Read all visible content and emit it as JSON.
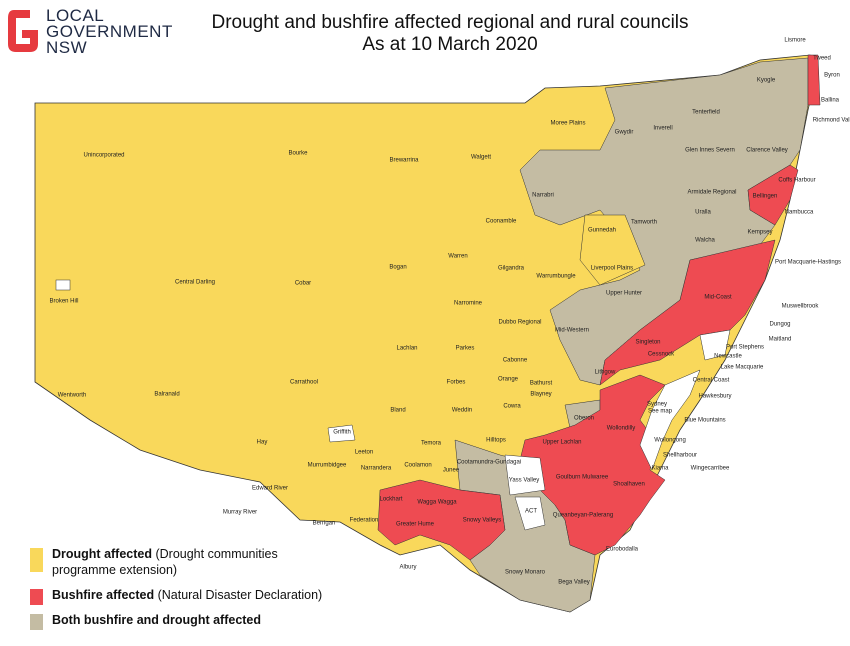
{
  "header": {
    "logo": [
      "LOCAL",
      "GOVERNMENT",
      "NSW"
    ],
    "title": [
      "Drought and bushfire affected regional and rural councils",
      "As at 10 March 2020"
    ]
  },
  "legend": {
    "items": [
      {
        "color": "#f9d85b",
        "bold": "Drought affected",
        "text": " (Drought communities programme extension)"
      },
      {
        "color": "#ee4b52",
        "bold": "Bushfire affected",
        "text": " (Natural Disaster Declaration)"
      },
      {
        "color": "#c4bca3",
        "bold": "Both bushfire and drought affected",
        "text": ""
      }
    ]
  },
  "councils": [
    "Lismore",
    "Tweed",
    "Byron",
    "Kyogle",
    "Ballina",
    "Richmond Valley",
    "Tenterfield",
    "Moree Plains",
    "Gwydir",
    "Inverell",
    "Glen Innes Severn",
    "Clarence Valley",
    "Unincorporated",
    "Bourke",
    "Brewarrina",
    "Walgett",
    "Coffs Harbour",
    "Narrabri",
    "Armidale Regional",
    "Uralla",
    "Bellingen",
    "Nambucca",
    "Coonamble",
    "Tamworth",
    "Gunnedah",
    "Walcha",
    "Kempsey",
    "Warren",
    "Gilgandra",
    "Bogan",
    "Liverpool Plains",
    "Warrumbungle",
    "Central Darling",
    "Cobar",
    "Port Macquarie-Hastings",
    "Upper Hunter",
    "Broken Hill",
    "Narromine",
    "Mid-Coast",
    "Muswellbrook",
    "Dubbo Regional",
    "Mid-Western",
    "Dungog",
    "Maitland",
    "Port Stephens",
    "Singleton",
    "Lachlan",
    "Parkes",
    "Cabonne",
    "Cessnock",
    "Newcastle",
    "Lake Macquarie",
    "Central Coast",
    "Orange",
    "Forbes",
    "Blayney",
    "Carrathool",
    "Lithgow",
    "Bathurst",
    "Wentworth",
    "Hawkesbury",
    "Sydney",
    "See map",
    "Blue Mountains",
    "Weddin",
    "Cowra",
    "Oberon",
    "Balranald",
    "Bland",
    "Hilltops",
    "Wollondilly",
    "Griffith",
    "Hay",
    "Leeton",
    "Temora",
    "Upper Lachlan",
    "Wollongong",
    "Shellharbour",
    "Murrumbidgee",
    "Narrandera",
    "Cootamundra-Gundagai",
    "Coolamon",
    "Junee",
    "Kiama",
    "Wingecarribee",
    "Goulburn Mulwaree",
    "Shoalhaven",
    "Edward River",
    "Yass Valley",
    "Wagga Wagga",
    "Lockhart",
    "Murray River",
    "ACT",
    "Snowy Valleys",
    "Queanbeyan-Palerang",
    "Berrigan",
    "Federation",
    "Greater Hume",
    "Albury",
    "Eurobodalla",
    "Snowy Monaro",
    "Bega Valley"
  ]
}
